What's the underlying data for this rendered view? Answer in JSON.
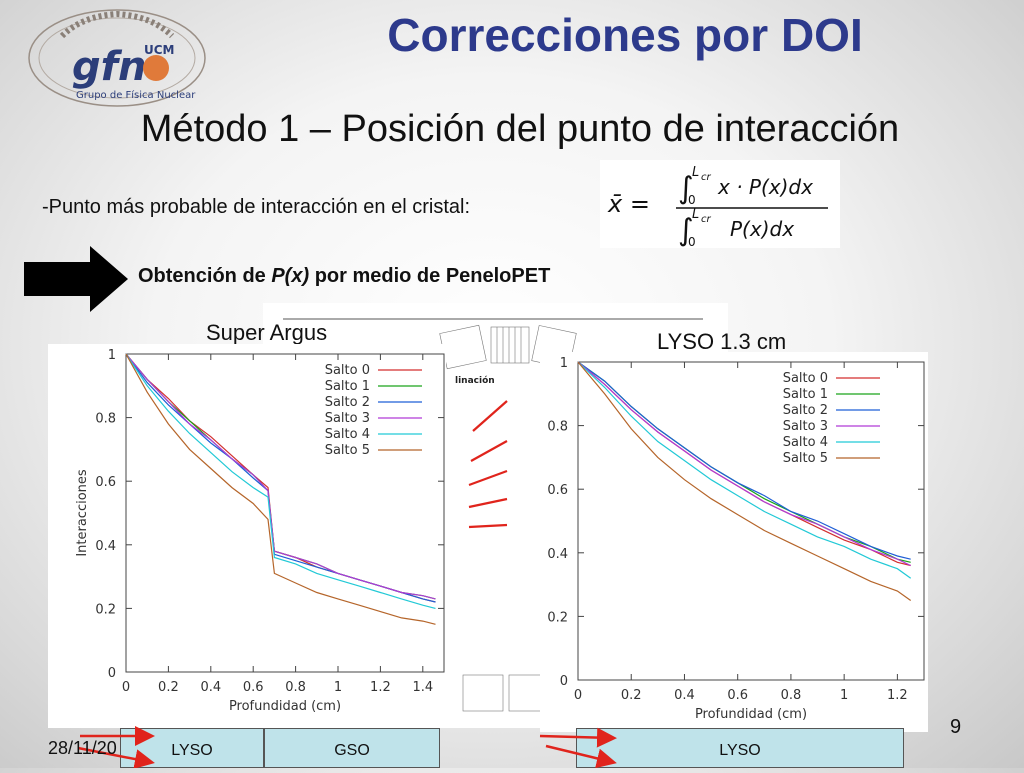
{
  "slide": {
    "title": "Correcciones por DOI",
    "subtitle": "Método 1 – Posición del punto de interacción",
    "bullet": "-Punto más probable de interacción en el cristal:",
    "method_prefix": "Obtención de ",
    "method_var": "P(x)",
    "method_suffix": " por medio de PeneloPET",
    "label_left": "Super Argus",
    "label_right": "LYSO 1.3 cm",
    "page_number": "9",
    "date": "28/11/20",
    "crystals": [
      "LYSO",
      "GSO",
      "LYSO"
    ],
    "background_fragment": "linación"
  },
  "logo": {
    "brand": "gfn",
    "superscript": "UCM",
    "caption": "Grupo de Física Nuclear"
  },
  "formula": {
    "lhs": "x̄ =",
    "numerator_upper": "L",
    "numerator_upper_sub": "cr",
    "numerator_lower": "0",
    "numerator_body": "x · P(x)dx",
    "denominator_upper": "L",
    "denominator_upper_sub": "cr",
    "denominator_lower": "0",
    "denominator_body": "P(x)dx"
  },
  "colors": {
    "title": "#2d3a8c",
    "arrow": "#000000",
    "red_arrow": "#e0241c",
    "crystal_fill": "#bfe3ea",
    "series": [
      "#d32f2f",
      "#1aa31a",
      "#1f5fd6",
      "#b03ad6",
      "#22c9d6",
      "#b5652a"
    ]
  },
  "chart_data": [
    {
      "type": "line",
      "xlabel": "Profundidad (cm)",
      "ylabel": "Interacciones",
      "xlim": [
        0,
        1.5
      ],
      "ylim": [
        0,
        1
      ],
      "xticks": [
        "0",
        "0.2",
        "0.4",
        "0.6",
        "0.8",
        "1",
        "1.2",
        "1.4"
      ],
      "yticks": [
        "0",
        "0.2",
        "0.4",
        "0.6",
        "0.8",
        "1"
      ],
      "legend": "top-right",
      "series": [
        {
          "name": "Salto 0",
          "x": [
            0,
            0.1,
            0.2,
            0.3,
            0.4,
            0.5,
            0.6,
            0.67,
            0.7,
            0.8,
            0.9,
            1.0,
            1.1,
            1.2,
            1.3,
            1.4,
            1.46
          ],
          "y": [
            1.0,
            0.92,
            0.86,
            0.79,
            0.74,
            0.68,
            0.62,
            0.58,
            0.38,
            0.36,
            0.33,
            0.31,
            0.29,
            0.27,
            0.25,
            0.23,
            0.22
          ]
        },
        {
          "name": "Salto 1",
          "x": [
            0,
            0.1,
            0.2,
            0.3,
            0.4,
            0.5,
            0.6,
            0.67,
            0.7,
            0.8,
            0.9,
            1.0,
            1.1,
            1.2,
            1.3,
            1.4,
            1.46
          ],
          "y": [
            1.0,
            0.92,
            0.85,
            0.79,
            0.73,
            0.67,
            0.62,
            0.57,
            0.38,
            0.36,
            0.34,
            0.31,
            0.29,
            0.27,
            0.25,
            0.24,
            0.23
          ]
        },
        {
          "name": "Salto 2",
          "x": [
            0,
            0.1,
            0.2,
            0.3,
            0.4,
            0.5,
            0.6,
            0.67,
            0.7,
            0.8,
            0.9,
            1.0,
            1.1,
            1.2,
            1.3,
            1.4,
            1.46
          ],
          "y": [
            1.0,
            0.91,
            0.84,
            0.78,
            0.72,
            0.67,
            0.61,
            0.57,
            0.37,
            0.35,
            0.33,
            0.31,
            0.29,
            0.27,
            0.25,
            0.23,
            0.22
          ]
        },
        {
          "name": "Salto 3",
          "x": [
            0,
            0.1,
            0.2,
            0.3,
            0.4,
            0.5,
            0.6,
            0.67,
            0.7,
            0.8,
            0.9,
            1.0,
            1.1,
            1.2,
            1.3,
            1.4,
            1.46
          ],
          "y": [
            1.0,
            0.92,
            0.85,
            0.78,
            0.73,
            0.67,
            0.62,
            0.57,
            0.38,
            0.36,
            0.34,
            0.31,
            0.29,
            0.27,
            0.25,
            0.24,
            0.23
          ]
        },
        {
          "name": "Salto 4",
          "x": [
            0,
            0.1,
            0.2,
            0.3,
            0.4,
            0.5,
            0.6,
            0.67,
            0.7,
            0.8,
            0.9,
            1.0,
            1.1,
            1.2,
            1.3,
            1.4,
            1.46
          ],
          "y": [
            1.0,
            0.9,
            0.82,
            0.75,
            0.69,
            0.63,
            0.58,
            0.55,
            0.36,
            0.34,
            0.31,
            0.29,
            0.27,
            0.25,
            0.23,
            0.21,
            0.2
          ]
        },
        {
          "name": "Salto 5",
          "x": [
            0,
            0.1,
            0.2,
            0.3,
            0.4,
            0.5,
            0.6,
            0.67,
            0.7,
            0.8,
            0.9,
            1.0,
            1.1,
            1.2,
            1.3,
            1.4,
            1.46
          ],
          "y": [
            1.0,
            0.88,
            0.78,
            0.7,
            0.64,
            0.58,
            0.53,
            0.48,
            0.31,
            0.28,
            0.25,
            0.23,
            0.21,
            0.19,
            0.17,
            0.16,
            0.15
          ]
        }
      ]
    },
    {
      "type": "line",
      "xlabel": "Profundidad (cm)",
      "ylabel": "Interacciones",
      "xlim": [
        0,
        1.3
      ],
      "ylim": [
        0,
        1
      ],
      "xticks": [
        "0",
        "0.2",
        "0.4",
        "0.6",
        "0.8",
        "1",
        "1.2"
      ],
      "yticks": [
        "0",
        "0.2",
        "0.4",
        "0.6",
        "0.8",
        "1"
      ],
      "legend": "top-right",
      "series": [
        {
          "name": "Salto 0",
          "x": [
            0,
            0.1,
            0.2,
            0.3,
            0.4,
            0.5,
            0.6,
            0.7,
            0.8,
            0.9,
            1.0,
            1.1,
            1.2,
            1.25
          ],
          "y": [
            1.0,
            0.93,
            0.85,
            0.78,
            0.72,
            0.66,
            0.61,
            0.56,
            0.52,
            0.48,
            0.44,
            0.41,
            0.37,
            0.36
          ]
        },
        {
          "name": "Salto 1",
          "x": [
            0,
            0.1,
            0.2,
            0.3,
            0.4,
            0.5,
            0.6,
            0.7,
            0.8,
            0.9,
            1.0,
            1.1,
            1.2,
            1.25
          ],
          "y": [
            1.0,
            0.94,
            0.86,
            0.79,
            0.73,
            0.67,
            0.62,
            0.57,
            0.53,
            0.49,
            0.45,
            0.42,
            0.38,
            0.37
          ]
        },
        {
          "name": "Salto 2",
          "x": [
            0,
            0.1,
            0.2,
            0.3,
            0.4,
            0.5,
            0.6,
            0.7,
            0.8,
            0.9,
            1.0,
            1.1,
            1.2,
            1.25
          ],
          "y": [
            1.0,
            0.94,
            0.86,
            0.79,
            0.73,
            0.67,
            0.62,
            0.58,
            0.53,
            0.5,
            0.46,
            0.42,
            0.39,
            0.38
          ]
        },
        {
          "name": "Salto 3",
          "x": [
            0,
            0.1,
            0.2,
            0.3,
            0.4,
            0.5,
            0.6,
            0.7,
            0.8,
            0.9,
            1.0,
            1.1,
            1.2,
            1.25
          ],
          "y": [
            1.0,
            0.93,
            0.85,
            0.78,
            0.72,
            0.66,
            0.61,
            0.56,
            0.52,
            0.49,
            0.45,
            0.41,
            0.38,
            0.36
          ]
        },
        {
          "name": "Salto 4",
          "x": [
            0,
            0.1,
            0.2,
            0.3,
            0.4,
            0.5,
            0.6,
            0.7,
            0.8,
            0.9,
            1.0,
            1.1,
            1.2,
            1.25
          ],
          "y": [
            1.0,
            0.92,
            0.83,
            0.75,
            0.69,
            0.63,
            0.58,
            0.53,
            0.49,
            0.45,
            0.42,
            0.38,
            0.35,
            0.32
          ]
        },
        {
          "name": "Salto 5",
          "x": [
            0,
            0.1,
            0.2,
            0.3,
            0.4,
            0.5,
            0.6,
            0.7,
            0.8,
            0.9,
            1.0,
            1.1,
            1.2,
            1.25
          ],
          "y": [
            1.0,
            0.9,
            0.79,
            0.7,
            0.63,
            0.57,
            0.52,
            0.47,
            0.43,
            0.39,
            0.35,
            0.31,
            0.28,
            0.25
          ]
        }
      ]
    }
  ]
}
